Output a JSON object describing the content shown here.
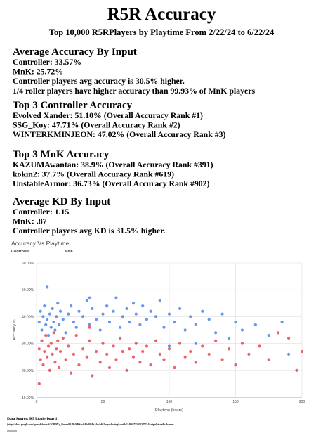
{
  "title": "R5R Accuracy",
  "subtitle": "Top 10,000 R5RPlayers by Playtime From 2/22/24 to 6/22/24",
  "sections": [
    {
      "heading": "Average Accuracy By Input",
      "lines": [
        "Controller: 33.57%",
        "MnK: 25.72%",
        "Controller players avg accuracy is 30.5% higher.",
        "1/4 roller players have higher accuracy than 99.93% of MnK players"
      ]
    },
    {
      "heading": "Top 3 Controller Accuracy",
      "lines": [
        "Evolved Xander: 51.10% (Overall Accuracy Rank #1)",
        "SSG_Koy: 47.71% (Overall Accuracy Rank #2)",
        "WINTERKMINJEON: 47.02% (Overall Accuracy Rank #3)"
      ]
    },
    {
      "heading": "Top 3 MnK Accuracy",
      "lines": [
        "KAZUMAwantan: 38.9% (Overall Accuracy Rank #391)",
        "kokin2: 37.7% (Overall Accuracy Rank #619)",
        "UnstableArmor: 36.73% (Overall Accuracy Rank #902)"
      ]
    },
    {
      "heading": "Average KD By Input",
      "lines": [
        "Controller: 1.15",
        "MnK: .87",
        "Controller players avg KD is 31.5% higher."
      ]
    }
  ],
  "chart_data": {
    "type": "scatter",
    "title": "Accuracy Vs Playtime",
    "x_label": "Playtime (hours)",
    "y_label": "Accuracy %",
    "xlim": [
      0,
      200
    ],
    "xticks": [
      0,
      50,
      100,
      150,
      200
    ],
    "ylim": [
      10,
      60
    ],
    "yticks": [
      {
        "value": 10,
        "label": "10.00%"
      },
      {
        "value": 20,
        "label": "20.00%"
      },
      {
        "value": 30,
        "label": "30.00%"
      },
      {
        "value": 40,
        "label": "40.00%"
      },
      {
        "value": 50,
        "label": "50.00%"
      },
      {
        "value": 60,
        "label": "60.00%"
      }
    ],
    "grid": true,
    "series": [
      {
        "name": "Controller",
        "color": "#4a86e8",
        "x": [
          2,
          3,
          4,
          5,
          6,
          7,
          8,
          9,
          10,
          11,
          12,
          13,
          14,
          15,
          16,
          17,
          18,
          20,
          22,
          24,
          26,
          28,
          30,
          32,
          35,
          38,
          40,
          42,
          45,
          48,
          50,
          53,
          55,
          58,
          60,
          63,
          65,
          68,
          70,
          73,
          75,
          78,
          80,
          83,
          86,
          90,
          93,
          96,
          100,
          104,
          108,
          112,
          116,
          120,
          125,
          130,
          135,
          140,
          145,
          150,
          155,
          165,
          175,
          185,
          8,
          40,
          120,
          190,
          100
        ],
        "values": [
          38,
          42,
          35,
          40,
          44,
          37,
          39,
          33,
          41,
          36,
          43,
          38,
          35,
          40,
          45,
          37,
          42,
          39,
          34,
          41,
          44,
          38,
          36,
          42,
          40,
          46,
          37,
          43,
          39,
          35,
          41,
          44,
          38,
          42,
          47,
          36,
          40,
          43,
          38,
          45,
          41,
          37,
          44,
          39,
          42,
          40,
          46,
          36,
          41,
          38,
          43,
          35,
          40,
          37,
          42,
          39,
          34,
          41,
          32,
          38,
          35,
          37,
          33,
          38,
          51,
          47,
          30,
          26,
          29
        ]
      },
      {
        "name": "MNK",
        "color": "#e8474f",
        "x": [
          2,
          3,
          4,
          5,
          6,
          7,
          8,
          9,
          10,
          11,
          12,
          13,
          14,
          15,
          16,
          17,
          18,
          20,
          22,
          24,
          26,
          28,
          30,
          32,
          35,
          38,
          40,
          42,
          45,
          48,
          50,
          53,
          55,
          58,
          60,
          63,
          65,
          68,
          70,
          73,
          75,
          78,
          80,
          83,
          86,
          90,
          93,
          96,
          100,
          104,
          108,
          112,
          116,
          120,
          125,
          130,
          135,
          140,
          145,
          150,
          155,
          160,
          168,
          175,
          182,
          190,
          196,
          200,
          40,
          2
        ],
        "values": [
          28,
          24,
          31,
          22,
          27,
          33,
          25,
          29,
          20,
          30,
          26,
          34,
          23,
          28,
          31,
          21,
          27,
          32,
          24,
          29,
          19,
          26,
          33,
          22,
          28,
          25,
          31,
          18,
          27,
          23,
          30,
          26,
          21,
          29,
          24,
          32,
          27,
          20,
          28,
          25,
          30,
          23,
          27,
          29,
          22,
          31,
          26,
          24,
          28,
          21,
          30,
          25,
          27,
          23,
          29,
          26,
          31,
          24,
          28,
          22,
          30,
          26,
          29,
          24,
          34,
          32,
          20,
          27,
          36,
          15
        ]
      }
    ]
  },
  "footer": {
    "source": "Data Source: R5 Leaderboard",
    "url": "(https://docs.google.com/spreadsheets/d/1GBDVq_Bsmm0BJPvNHS4v0AfcM0Jh14w/edit?usp=sharing&ouid=114663755025375744&rtpof=true&sd=true)"
  }
}
